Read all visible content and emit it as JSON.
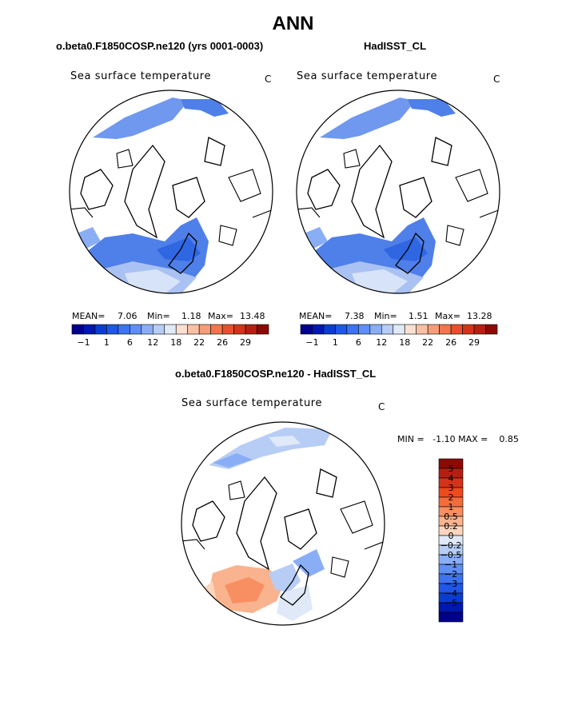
{
  "title": "ANN",
  "panels": [
    {
      "title": "o.beta0.F1850COSP.ne120 (yrs 0001-0003)",
      "variable": "Sea surface temperature",
      "units": "C",
      "stats": {
        "mean_label": "MEAN=",
        "mean": "7.06",
        "min_label": "Min=",
        "min": "1.18",
        "max_label": "Max=",
        "max": "13.48"
      }
    },
    {
      "title": "HadISST_CL",
      "variable": "Sea surface temperature",
      "units": "C",
      "stats": {
        "mean_label": "MEAN=",
        "mean": "7.38",
        "min_label": "Min=",
        "min": "1.51",
        "max_label": "Max=",
        "max": "13.28"
      }
    },
    {
      "title": "o.beta0.F1850COSP.ne120 - HadISST_CL",
      "variable": "Sea surface temperature",
      "units": "C",
      "minmax": "MIN =   -1.10 MAX =    0.85"
    }
  ],
  "chart_data": [
    {
      "type": "heatmap",
      "projection": "north polar stereographic",
      "title": "o.beta0.F1850COSP.ne120 (yrs 0001-0003)",
      "variable": "Sea surface temperature",
      "units": "C",
      "mean": 7.06,
      "min": 1.18,
      "max": 13.48,
      "colorbar": {
        "orientation": "horizontal",
        "tick_labels": [
          "-1",
          "1",
          "6",
          "12",
          "18",
          "22",
          "26",
          "29"
        ],
        "colors": [
          "#00008b",
          "#0018b0",
          "#0b3cd0",
          "#1f56e6",
          "#3d72f0",
          "#5f8ef5",
          "#8aaef5",
          "#b7cdf5",
          "#dfe9f7",
          "#fbe0d2",
          "#f8c0a5",
          "#f49d7a",
          "#ef7750",
          "#e6502e",
          "#d3331a",
          "#b51f12",
          "#8b0a05"
        ]
      }
    },
    {
      "type": "heatmap",
      "projection": "north polar stereographic",
      "title": "HadISST_CL",
      "variable": "Sea surface temperature",
      "units": "C",
      "mean": 7.38,
      "min": 1.51,
      "max": 13.28,
      "colorbar": {
        "orientation": "horizontal",
        "tick_labels": [
          "-1",
          "1",
          "6",
          "12",
          "18",
          "22",
          "26",
          "29"
        ],
        "colors": [
          "#00008b",
          "#0018b0",
          "#0b3cd0",
          "#1f56e6",
          "#3d72f0",
          "#5f8ef5",
          "#8aaef5",
          "#b7cdf5",
          "#dfe9f7",
          "#fbe0d2",
          "#f8c0a5",
          "#f49d7a",
          "#ef7750",
          "#e6502e",
          "#d3331a",
          "#b51f12",
          "#8b0a05"
        ]
      }
    },
    {
      "type": "heatmap",
      "projection": "north polar stereographic",
      "title": "o.beta0.F1850COSP.ne120 - HadISST_CL",
      "variable": "Sea surface temperature",
      "units": "C",
      "min": -1.1,
      "max": 0.85,
      "colorbar": {
        "orientation": "vertical",
        "levels_top_to_bottom": [
          "5",
          "4",
          "3",
          "2",
          "1",
          "0.5",
          "0.2",
          "0",
          "-0.2",
          "-0.5",
          "-1",
          "-2",
          "-3",
          "-4",
          "-5"
        ],
        "colors_top_to_bottom": [
          "#8b0a05",
          "#b51f12",
          "#d3331a",
          "#ee4a1c",
          "#f56c3a",
          "#f78f62",
          "#f9b38e",
          "#fbd5bd",
          "#dfe9f7",
          "#b7cdf5",
          "#8aaef5",
          "#5f8ef5",
          "#3d72f0",
          "#1f56e6",
          "#0b3cd0",
          "#0018b0",
          "#00008b"
        ]
      }
    }
  ]
}
